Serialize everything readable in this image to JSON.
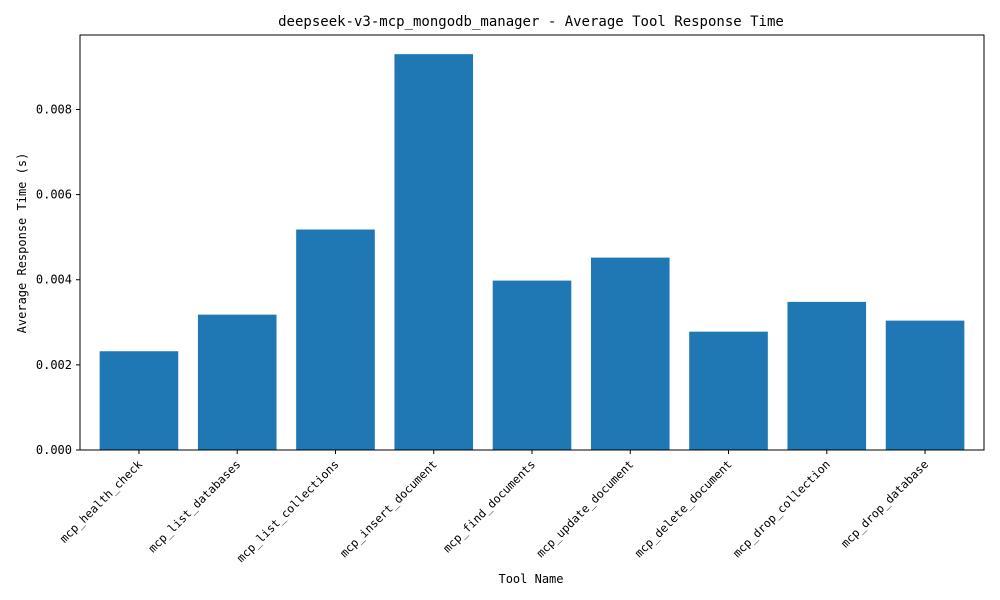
{
  "chart_data": {
    "type": "bar",
    "title": "deepseek-v3-mcp_mongodb_manager - Average Tool Response Time",
    "xlabel": "Tool Name",
    "ylabel": "Average Response Time (s)",
    "categories": [
      "mcp_health_check",
      "mcp_list_databases",
      "mcp_list_collections",
      "mcp_insert_document",
      "mcp_find_documents",
      "mcp_update_document",
      "mcp_delete_document",
      "mcp_drop_collection",
      "mcp_drop_database"
    ],
    "values": [
      0.00232,
      0.00318,
      0.00518,
      0.0093,
      0.00398,
      0.00452,
      0.00278,
      0.00348,
      0.00304
    ],
    "ylim": [
      0,
      0.00975
    ],
    "yticks": [
      "0.000",
      "0.002",
      "0.004",
      "0.006",
      "0.008"
    ],
    "bar_color": "#1f77b4",
    "grid": false,
    "legend": "none"
  }
}
